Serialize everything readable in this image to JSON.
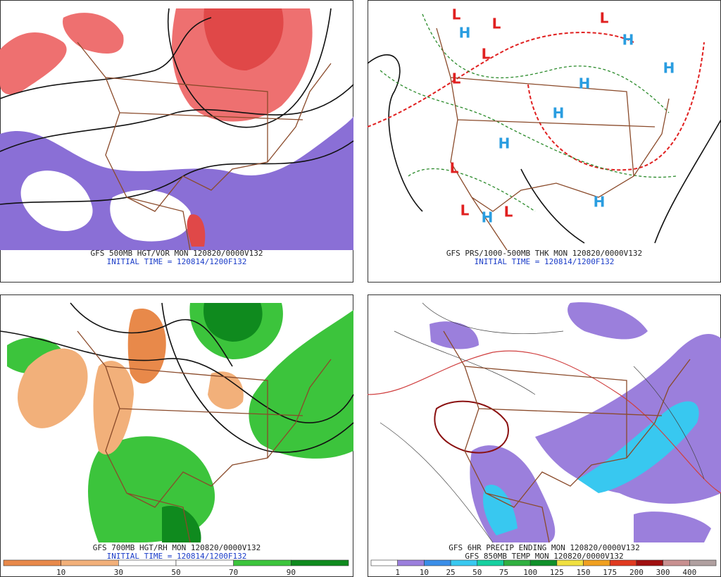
{
  "panels": [
    {
      "caption": "GFS 500MB HGT/VOR MON 120820/0000V132",
      "subcaption": "INITIAL TIME = 120814/1200F132"
    },
    {
      "caption": "GFS PRS/1000-500MB THK MON 120820/0000V132",
      "subcaption": "INITIAL TIME = 120814/1200F132",
      "pressure_centers": [
        "L",
        "L",
        "L",
        "L",
        "L",
        "L",
        "L",
        "L",
        "H",
        "H",
        "H",
        "H",
        "H",
        "H",
        "H",
        "H"
      ]
    },
    {
      "caption": "GFS 700MB HGT/RH MON 120820/0000V132",
      "subcaption": "INITIAL TIME = 120814/1200F132",
      "colorbar": {
        "labels": [
          "10",
          "30",
          "50",
          "70",
          "90"
        ],
        "colors": [
          "#e8894a",
          "#f2b07a",
          "#ffffff",
          "#ffffff",
          "#3cc43c",
          "#0f8a1e"
        ]
      }
    },
    {
      "caption": "GFS 6HR PRECIP ENDING MON 120820/0000V132",
      "subcaption": "GFS 850MB TEMP MON 120820/0000V132",
      "colorbar": {
        "labels": [
          "1",
          "10",
          "25",
          "50",
          "75",
          "100",
          "125",
          "150",
          "175",
          "200",
          "300",
          "400"
        ],
        "colors": [
          "#ffffff",
          "#9b7fdc",
          "#3a8ee8",
          "#38c8f0",
          "#16d0a0",
          "#30b040",
          "#10902a",
          "#f0e040",
          "#f0a020",
          "#e03a20",
          "#a01010",
          "#c89090",
          "#b0a0a0"
        ]
      }
    }
  ]
}
